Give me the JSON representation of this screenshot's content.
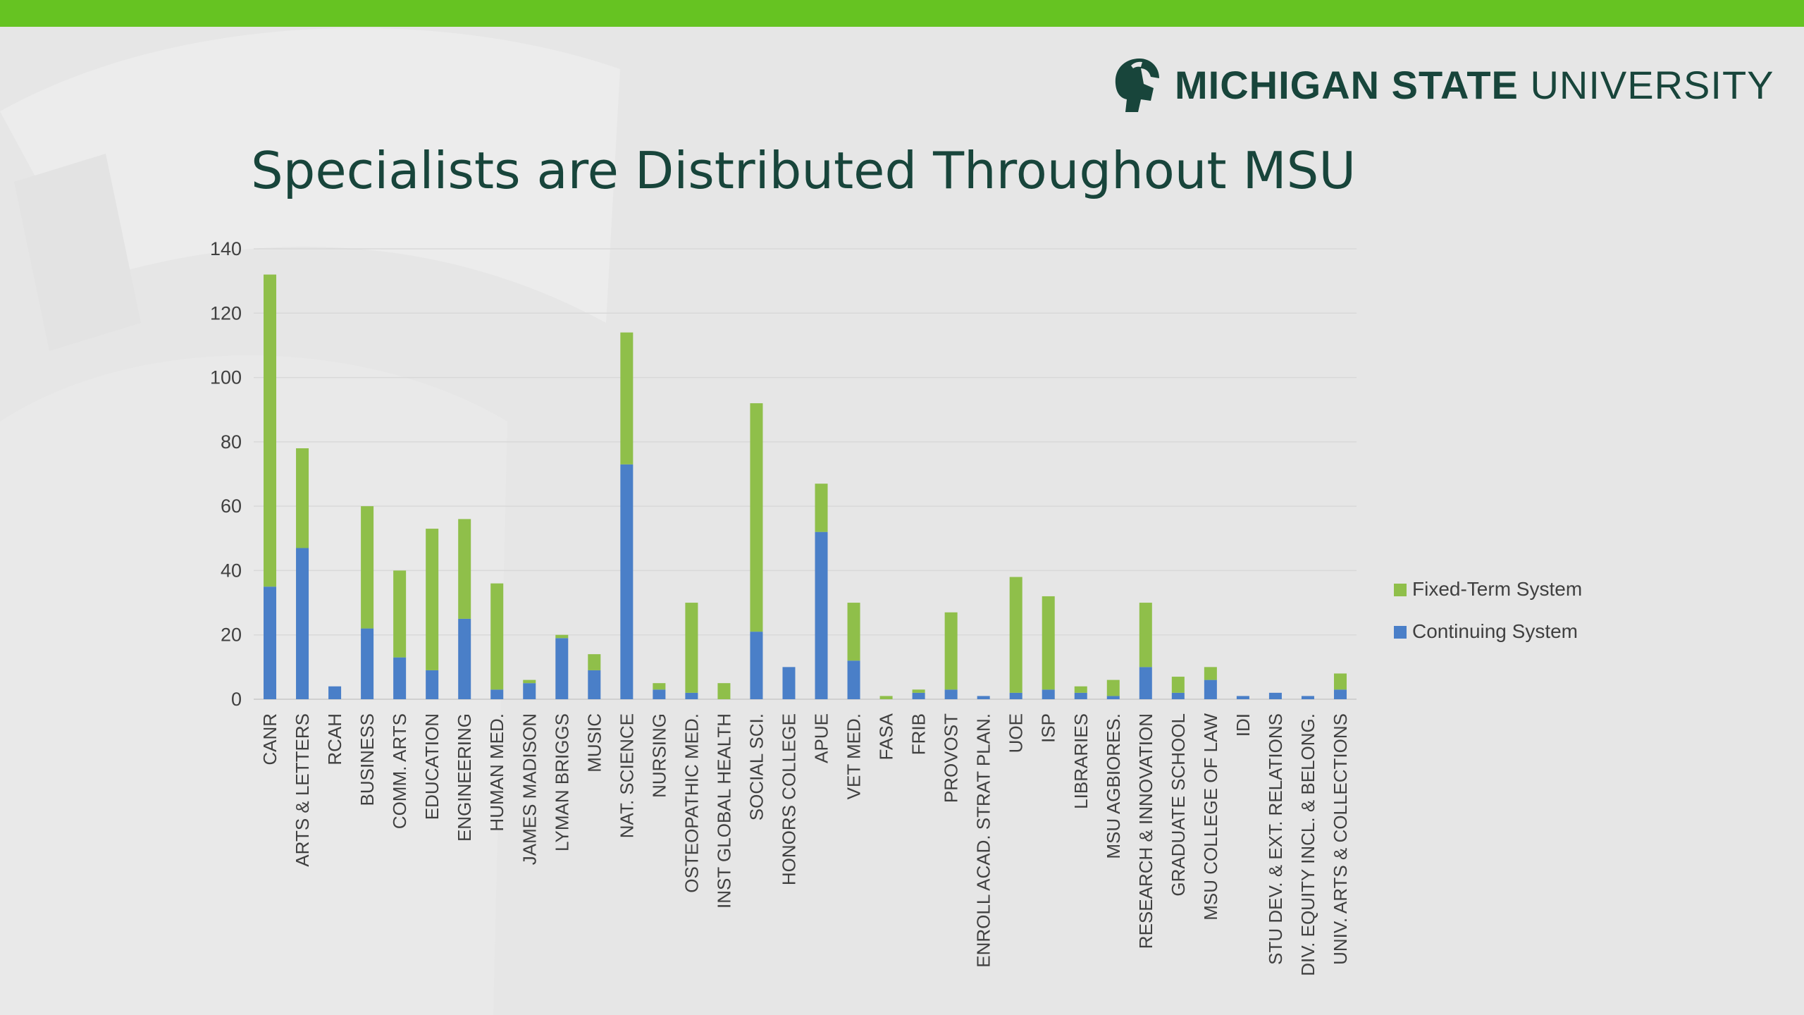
{
  "header": {
    "logo_bold": "MICHIGAN STATE",
    "logo_light": "UNIVERSITY"
  },
  "colors": {
    "top_bar": "#66c322",
    "title": "#18453b",
    "continuing": "#4a7fc8",
    "fixed_term": "#8fbf4a"
  },
  "chart_data": {
    "type": "bar",
    "stacked": true,
    "title": "Specialists are Distributed Throughout MSU",
    "xlabel": "",
    "ylabel": "",
    "ylim": [
      0,
      140
    ],
    "yticks": [
      0,
      20,
      40,
      60,
      80,
      100,
      120,
      140
    ],
    "grid": true,
    "legend_position": "right",
    "categories": [
      "CANR",
      "ARTS &  LETTERS",
      "RCAH",
      "BUSINESS",
      "COMM. ARTS",
      "EDUCATION",
      "ENGINEERING",
      "HUMAN MED.",
      "JAMES MADISON",
      "LYMAN BRIGGS",
      "MUSIC",
      "NAT. SCIENCE",
      "NURSING",
      "OSTEOPATHIC MED.",
      "INST GLOBAL HEALTH",
      "SOCIAL SCI.",
      "HONORS COLLEGE",
      "APUE",
      "VET MED.",
      "FASA",
      "FRIB",
      "PROVOST",
      "ENROLL ACAD. STRAT PLAN.",
      "UOE",
      "ISP",
      "LIBRARIES",
      "MSU AGBIORES.",
      "RESEARCH & INNOVATION",
      "GRADUATE SCHOOL",
      "MSU COLLEGE OF LAW",
      "IDI",
      "STU DEV. & EXT. RELATIONS",
      "DIV. EQUITY INCL. & BELONG.",
      "UNIV. ARTS & COLLECTIONS"
    ],
    "series": [
      {
        "name": "Continuing System",
        "color": "#4a7fc8",
        "values": [
          35,
          47,
          4,
          22,
          13,
          9,
          25,
          3,
          5,
          19,
          9,
          73,
          3,
          2,
          0,
          21,
          10,
          52,
          12,
          0,
          2,
          3,
          1,
          2,
          3,
          2,
          1,
          10,
          2,
          6,
          1,
          2,
          1,
          3
        ]
      },
      {
        "name": "Fixed-Term System",
        "color": "#8fbf4a",
        "values": [
          97,
          31,
          0,
          38,
          27,
          44,
          31,
          33,
          1,
          1,
          5,
          41,
          2,
          28,
          5,
          71,
          0,
          15,
          18,
          1,
          1,
          24,
          0,
          36,
          29,
          2,
          5,
          20,
          5,
          4,
          0,
          0,
          0,
          5
        ]
      }
    ],
    "legend_order": [
      "Fixed-Term System",
      "Continuing System"
    ]
  }
}
